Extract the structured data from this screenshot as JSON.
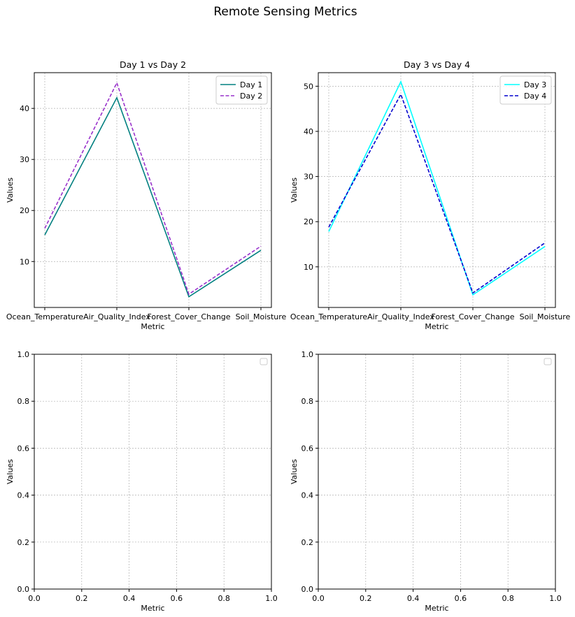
{
  "figure": {
    "title": "Remote Sensing Metrics"
  },
  "chart_data": [
    {
      "type": "line",
      "title": "Day 1 vs Day 2",
      "xlabel": "Metric",
      "ylabel": "Values",
      "categories": [
        "Ocean_Temperature",
        "Air_Quality_Index",
        "Forest_Cover_Change",
        "Soil_Moisture"
      ],
      "ylim": [
        1,
        47
      ],
      "yticks": [
        10,
        20,
        30,
        40
      ],
      "grid": true,
      "legend_position": "upper right",
      "series": [
        {
          "name": "Day 1",
          "values": [
            15.2,
            42.1,
            3.1,
            12.2
          ],
          "color": "#008080",
          "style": "solid"
        },
        {
          "name": "Day 2",
          "values": [
            16.5,
            45.0,
            3.6,
            13.0
          ],
          "color": "#9932CC",
          "style": "dashed"
        }
      ]
    },
    {
      "type": "line",
      "title": "Day 3 vs Day 4",
      "xlabel": "Metric",
      "ylabel": "Values",
      "categories": [
        "Ocean_Temperature",
        "Air_Quality_Index",
        "Forest_Cover_Change",
        "Soil_Moisture"
      ],
      "ylim": [
        1,
        53
      ],
      "yticks": [
        10,
        20,
        30,
        40,
        50
      ],
      "grid": true,
      "legend_position": "upper right",
      "series": [
        {
          "name": "Day 3",
          "values": [
            17.8,
            51.0,
            3.8,
            14.5
          ],
          "color": "#00FFFF",
          "style": "solid"
        },
        {
          "name": "Day 4",
          "values": [
            18.8,
            48.2,
            4.2,
            15.3
          ],
          "color": "#0000CD",
          "style": "dashed"
        }
      ]
    },
    {
      "type": "line",
      "title": "",
      "xlabel": "Metric",
      "ylabel": "Values",
      "xlim": [
        0,
        1
      ],
      "ylim": [
        0,
        1
      ],
      "xticks": [
        "0.0",
        "0.2",
        "0.4",
        "0.6",
        "0.8",
        "1.0"
      ],
      "yticks": [
        "0.0",
        "0.2",
        "0.4",
        "0.6",
        "0.8",
        "1.0"
      ],
      "grid": true,
      "legend_position": "upper right",
      "series": []
    },
    {
      "type": "line",
      "title": "",
      "xlabel": "Metric",
      "ylabel": "Values",
      "xlim": [
        0,
        1
      ],
      "ylim": [
        0,
        1
      ],
      "xticks": [
        "0.0",
        "0.2",
        "0.4",
        "0.6",
        "0.8",
        "1.0"
      ],
      "yticks": [
        "0.0",
        "0.2",
        "0.4",
        "0.6",
        "0.8",
        "1.0"
      ],
      "grid": true,
      "legend_position": "upper right",
      "series": []
    }
  ]
}
